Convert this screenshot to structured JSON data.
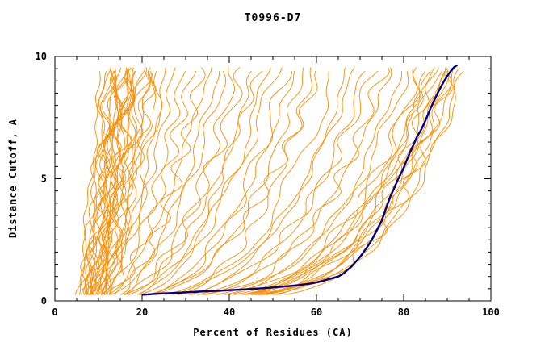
{
  "window": {
    "background": "#ffffff"
  },
  "chart_data": {
    "type": "line",
    "title": "T0996-D7",
    "xlabel": "Percent of Residues (CA)",
    "ylabel": "Distance Cutoff, A",
    "xlim": [
      0,
      100
    ],
    "ylim": [
      0,
      10
    ],
    "x_major_ticks": [
      0,
      20,
      40,
      60,
      80,
      100
    ],
    "x_minor_step": 5,
    "y_major_ticks": [
      0,
      5,
      10
    ],
    "y_minor_step": 0.5,
    "grid": false,
    "legend": "none",
    "axis_color": "#000000",
    "background_series": {
      "name": "predicted-models",
      "color": "#ff8c00",
      "description": "ensemble of model accuracy curves: percent of CA residues (x) under distance cutoff (y); each curve = [x_at_bottom, x_at_top, shape_exponent]",
      "curves": [
        [
          5,
          11,
          0.9
        ],
        [
          6,
          12,
          0.8
        ],
        [
          5,
          12,
          0.7
        ],
        [
          6,
          13,
          0.85
        ],
        [
          7,
          13,
          0.6
        ],
        [
          6,
          14,
          0.75
        ],
        [
          7,
          14,
          0.9
        ],
        [
          8,
          14,
          0.5
        ],
        [
          6,
          15,
          0.8
        ],
        [
          7,
          15,
          0.65
        ],
        [
          8,
          15,
          0.9
        ],
        [
          7,
          16,
          0.7
        ],
        [
          8,
          16,
          0.55
        ],
        [
          9,
          16,
          0.85
        ],
        [
          7,
          17,
          0.75
        ],
        [
          8,
          17,
          0.6
        ],
        [
          9,
          17,
          0.9
        ],
        [
          8,
          18,
          0.7
        ],
        [
          9,
          18,
          0.5
        ],
        [
          10,
          18,
          0.8
        ],
        [
          8,
          19,
          0.65
        ],
        [
          9,
          19,
          0.75
        ],
        [
          10,
          20,
          0.6
        ],
        [
          9,
          20,
          0.85
        ],
        [
          10,
          21,
          0.7
        ],
        [
          9,
          22,
          0.55
        ],
        [
          10,
          22,
          0.8
        ],
        [
          11,
          23,
          0.65
        ],
        [
          10,
          24,
          0.75
        ],
        [
          11,
          25,
          0.6
        ],
        [
          7,
          26,
          0.5
        ],
        [
          8,
          28,
          0.55
        ],
        [
          7,
          30,
          0.45
        ],
        [
          9,
          32,
          0.5
        ],
        [
          8,
          34,
          0.4
        ],
        [
          9,
          36,
          0.55
        ],
        [
          8,
          38,
          0.45
        ],
        [
          10,
          40,
          0.5
        ],
        [
          9,
          42,
          0.4
        ],
        [
          10,
          44,
          0.45
        ],
        [
          9,
          46,
          0.35
        ],
        [
          11,
          48,
          0.5
        ],
        [
          10,
          50,
          0.4
        ],
        [
          11,
          52,
          0.45
        ],
        [
          10,
          54,
          0.35
        ],
        [
          12,
          56,
          0.4
        ],
        [
          11,
          58,
          0.35
        ],
        [
          12,
          60,
          0.3
        ],
        [
          11,
          62,
          0.4
        ],
        [
          8,
          65,
          0.3
        ],
        [
          9,
          68,
          0.28
        ],
        [
          8,
          70,
          0.32
        ],
        [
          10,
          72,
          0.27
        ],
        [
          9,
          74,
          0.3
        ],
        [
          10,
          76,
          0.25
        ],
        [
          9,
          78,
          0.28
        ],
        [
          11,
          80,
          0.24
        ],
        [
          10,
          82,
          0.26
        ],
        [
          9,
          84,
          0.22
        ],
        [
          11,
          85,
          0.25
        ],
        [
          10,
          86,
          0.22
        ],
        [
          12,
          87,
          0.24
        ],
        [
          11,
          88,
          0.21
        ],
        [
          10,
          88,
          0.26
        ],
        [
          12,
          89,
          0.23
        ],
        [
          11,
          90,
          0.2
        ],
        [
          13,
          90,
          0.24
        ],
        [
          12,
          91,
          0.21
        ],
        [
          11,
          92,
          0.23
        ],
        [
          13,
          92,
          0.2
        ],
        [
          12,
          93,
          0.22
        ],
        [
          14,
          94,
          0.2
        ],
        [
          13,
          95,
          0.21
        ]
      ]
    },
    "highlight_series": {
      "name": "best-model",
      "color": "#000080",
      "points": [
        [
          20,
          0.25
        ],
        [
          24,
          0.3
        ],
        [
          28,
          0.33
        ],
        [
          33,
          0.38
        ],
        [
          38,
          0.42
        ],
        [
          43,
          0.47
        ],
        [
          48,
          0.52
        ],
        [
          52,
          0.58
        ],
        [
          56,
          0.65
        ],
        [
          59,
          0.72
        ],
        [
          61,
          0.8
        ],
        [
          63,
          0.9
        ],
        [
          65,
          1.0
        ],
        [
          66,
          1.1
        ],
        [
          67,
          1.25
        ],
        [
          68,
          1.4
        ],
        [
          69,
          1.6
        ],
        [
          70,
          1.8
        ],
        [
          71,
          2.05
        ],
        [
          72,
          2.3
        ],
        [
          73,
          2.6
        ],
        [
          74,
          2.95
        ],
        [
          75,
          3.3
        ],
        [
          75.6,
          3.6
        ],
        [
          76.3,
          3.95
        ],
        [
          77,
          4.3
        ],
        [
          77.8,
          4.6
        ],
        [
          78.5,
          4.9
        ],
        [
          79.2,
          5.15
        ],
        [
          80,
          5.45
        ],
        [
          80.8,
          5.8
        ],
        [
          81.5,
          6.1
        ],
        [
          82.3,
          6.4
        ],
        [
          83,
          6.7
        ],
        [
          84,
          7.0
        ],
        [
          84.8,
          7.3
        ],
        [
          85.5,
          7.6
        ],
        [
          86.2,
          7.9
        ],
        [
          87,
          8.2
        ],
        [
          87.8,
          8.5
        ],
        [
          88.5,
          8.75
        ],
        [
          89.3,
          9.0
        ],
        [
          90,
          9.2
        ],
        [
          90.8,
          9.4
        ],
        [
          91.5,
          9.55
        ],
        [
          92.3,
          9.65
        ]
      ]
    }
  }
}
